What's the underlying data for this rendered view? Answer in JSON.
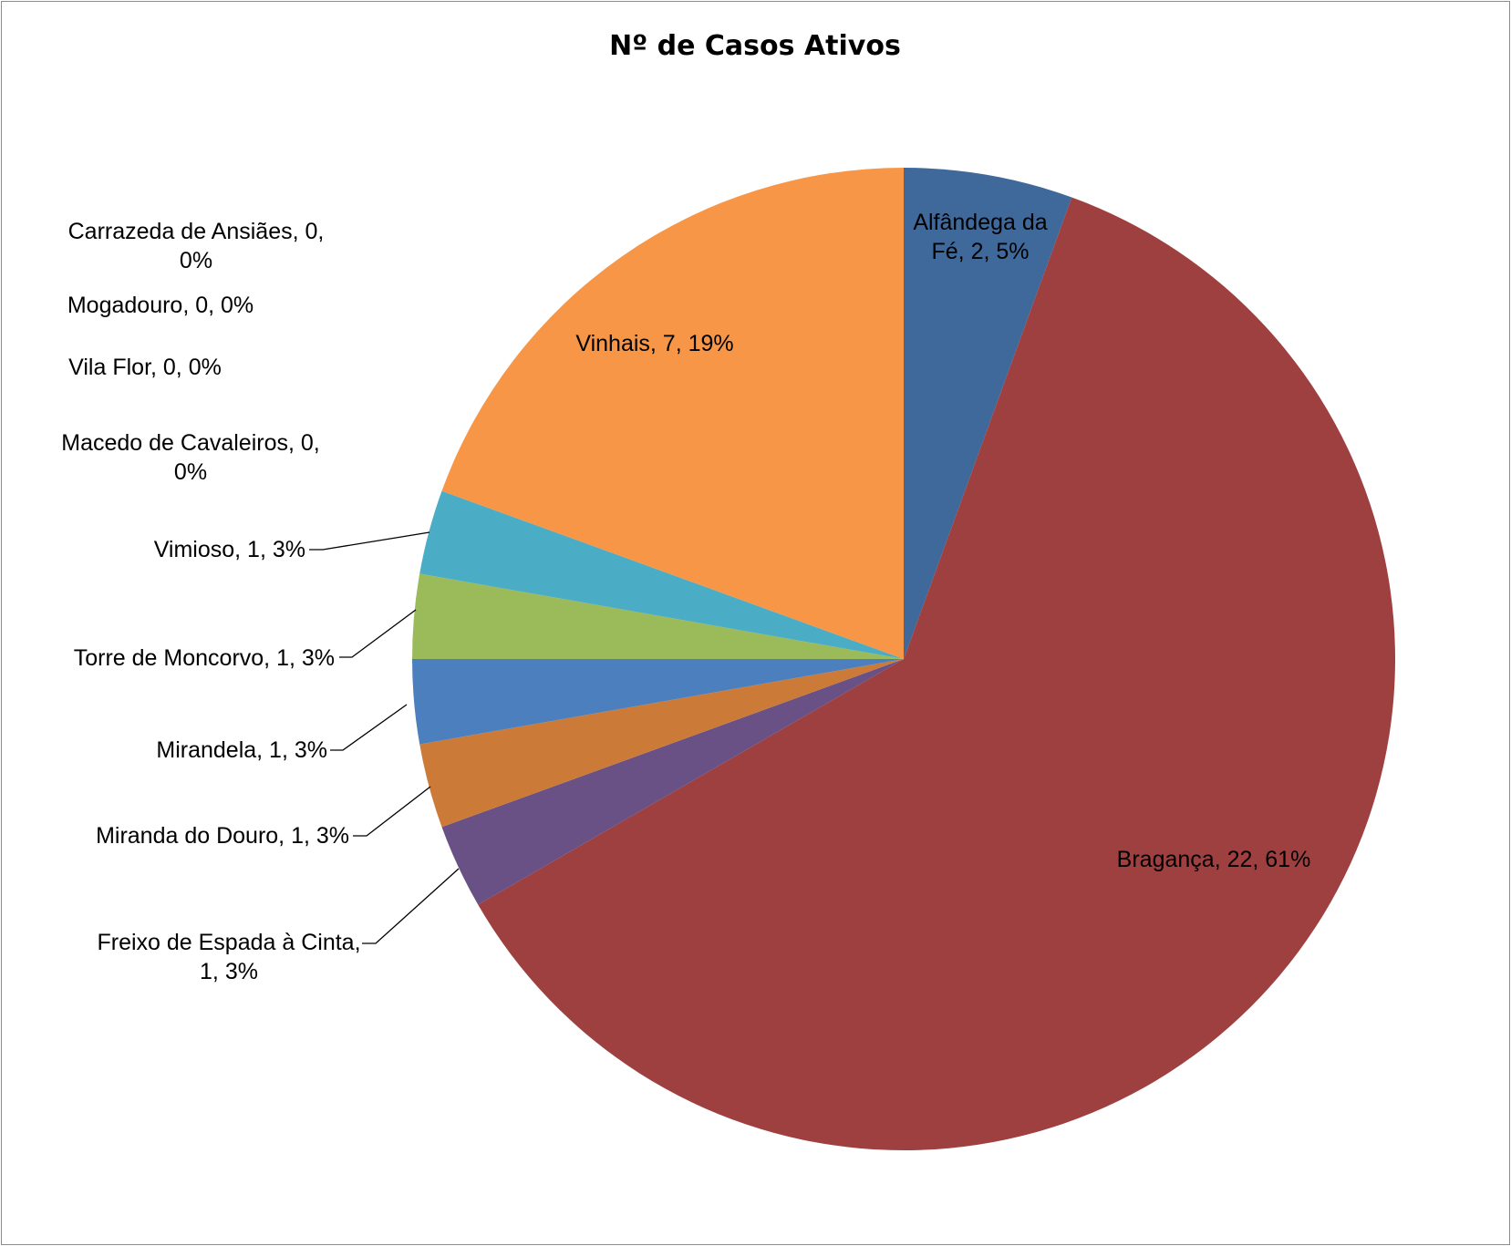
{
  "chart_data": {
    "type": "pie",
    "title": "Nº de Casos Ativos",
    "start_angle_deg": 0,
    "direction": "clockwise",
    "slices": [
      {
        "name": "Alfândega da Fé",
        "value": 2,
        "percent": "5%",
        "color": "#3F689B",
        "label_lines": [
          "Alfândega da",
          "Fé, 2, 5%"
        ]
      },
      {
        "name": "Bragança",
        "value": 22,
        "percent": "61%",
        "color": "#9E4040",
        "label_lines": [
          "Bragança, 22, 61%"
        ]
      },
      {
        "name": "Freixo de Espada à Cinta",
        "value": 1,
        "percent": "3%",
        "color": "#6A5185",
        "label_lines": [
          "Freixo de Espada à Cinta,",
          "1, 3%"
        ]
      },
      {
        "name": "Miranda do Douro",
        "value": 1,
        "percent": "3%",
        "color": "#CC7A38",
        "label_lines": [
          "Miranda do Douro, 1, 3%"
        ]
      },
      {
        "name": "Mirandela",
        "value": 1,
        "percent": "3%",
        "color": "#4B7FBD",
        "label_lines": [
          "Mirandela, 1, 3%"
        ]
      },
      {
        "name": "Torre de Moncorvo",
        "value": 1,
        "percent": "3%",
        "color": "#9BBA59",
        "label_lines": [
          "Torre de Moncorvo, 1, 3%"
        ]
      },
      {
        "name": "Vimioso",
        "value": 1,
        "percent": "3%",
        "color": "#4AACC5",
        "label_lines": [
          "Vimioso, 1, 3%"
        ]
      },
      {
        "name": "Macedo de Cavaleiros",
        "value": 0,
        "percent": "0%",
        "color": "#4AACC5",
        "label_lines": [
          "Macedo de Cavaleiros, 0,",
          "0%"
        ]
      },
      {
        "name": "Vila Flor",
        "value": 0,
        "percent": "0%",
        "color": "#4AACC5",
        "label_lines": [
          "Vila Flor, 0, 0%"
        ]
      },
      {
        "name": "Mogadouro",
        "value": 0,
        "percent": "0%",
        "color": "#4AACC5",
        "label_lines": [
          "Mogadouro, 0, 0%"
        ]
      },
      {
        "name": "Carrazeda de Ansiães",
        "value": 0,
        "percent": "0%",
        "color": "#4AACC5",
        "label_lines": [
          "Carrazeda de Ansiães, 0,",
          "0%"
        ]
      },
      {
        "name": "Vinhais",
        "value": 7,
        "percent": "19%",
        "color": "#F79646",
        "label_lines": [
          "Vinhais, 7, 19%"
        ]
      }
    ]
  }
}
